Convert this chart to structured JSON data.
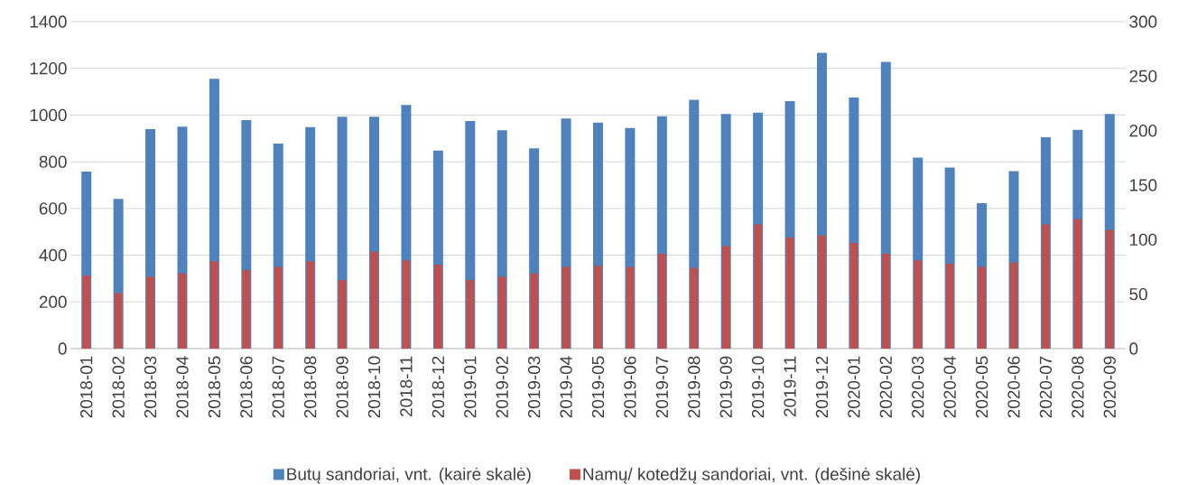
{
  "chart_data": {
    "type": "bar",
    "categories": [
      "2018-01",
      "2018-02",
      "2018-03",
      "2018-04",
      "2018-05",
      "2018-06",
      "2018-07",
      "2018-08",
      "2018-09",
      "2018-10",
      "2018-11",
      "2018-12",
      "2019-01",
      "2019-02",
      "2019-03",
      "2019-04",
      "2019-05",
      "2019-06",
      "2019-07",
      "2019-08",
      "2019-09",
      "2019-10",
      "2019-11",
      "2019-12",
      "2020-01",
      "2020-02",
      "2020-03",
      "2020-04",
      "2020-05",
      "2020-06",
      "2020-07",
      "2020-08",
      "2020-09"
    ],
    "series": [
      {
        "name": "Butų sandoriai, vnt. (kairė skalė)",
        "color": "#4f81bd",
        "values": [
          758,
          641,
          940,
          950,
          1155,
          978,
          878,
          948,
          993,
          993,
          1043,
          848,
          975,
          935,
          858,
          985,
          968,
          945,
          995,
          1065,
          1005,
          1010,
          1060,
          1267,
          1075,
          1228,
          818,
          775,
          623,
          760,
          905,
          937,
          1005
        ]
      },
      {
        "name": "Namų/ kotedžų sandoriai, vnt. (dešinė skalė)",
        "color": "#c0504d",
        "axis": "y2",
        "values": [
          67,
          51,
          66,
          69,
          80,
          72,
          75,
          80,
          63,
          89,
          81,
          77,
          63,
          66,
          69,
          75,
          76,
          75,
          87,
          74,
          94,
          114,
          102,
          104,
          97,
          87,
          81,
          78,
          75,
          79,
          114,
          119,
          109
        ]
      }
    ],
    "ylim": [
      0,
      1400
    ],
    "yticks": [
      0,
      200,
      400,
      600,
      800,
      1000,
      1200,
      1400
    ],
    "y2lim": [
      0,
      300
    ],
    "y2ticks": [
      0,
      50,
      100,
      150,
      200,
      250,
      300
    ],
    "grid": "y",
    "legend": "bottom"
  }
}
